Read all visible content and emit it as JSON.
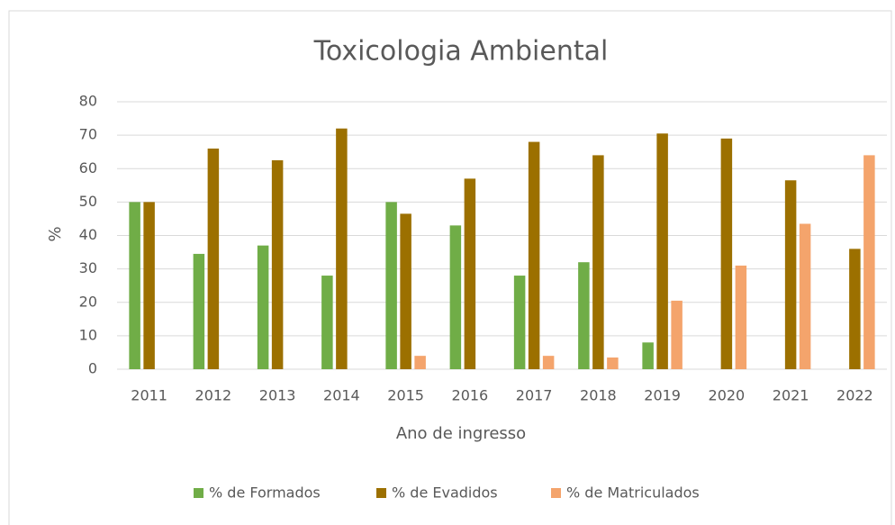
{
  "chart_data": {
    "type": "bar",
    "title": "Toxicologia Ambiental",
    "x_label": "Ano de ingresso",
    "y_label": "%",
    "categories": [
      "2011",
      "2012",
      "2013",
      "2014",
      "2015",
      "2016",
      "2017",
      "2018",
      "2019",
      "2020",
      "2021",
      "2022"
    ],
    "series": [
      {
        "name": "% de Formados",
        "color": "#70ad47",
        "values": [
          50,
          34.5,
          37,
          28,
          50,
          43,
          28,
          32,
          8,
          0,
          0,
          0
        ]
      },
      {
        "name": "% de Evadidos",
        "color": "#9c7000",
        "values": [
          50,
          66,
          62.5,
          72,
          46.5,
          57,
          68,
          64,
          70.5,
          69,
          56.5,
          36
        ]
      },
      {
        "name": "% de Matriculados",
        "color": "#f4a46c",
        "values": [
          0,
          0,
          0,
          0,
          4,
          0,
          4,
          3.5,
          20.5,
          31,
          43.5,
          64
        ]
      }
    ],
    "ylim": [
      0,
      80
    ],
    "yticks": [
      0,
      10,
      20,
      30,
      40,
      50,
      60,
      70,
      80
    ],
    "grid": true,
    "legend": "bottom"
  }
}
